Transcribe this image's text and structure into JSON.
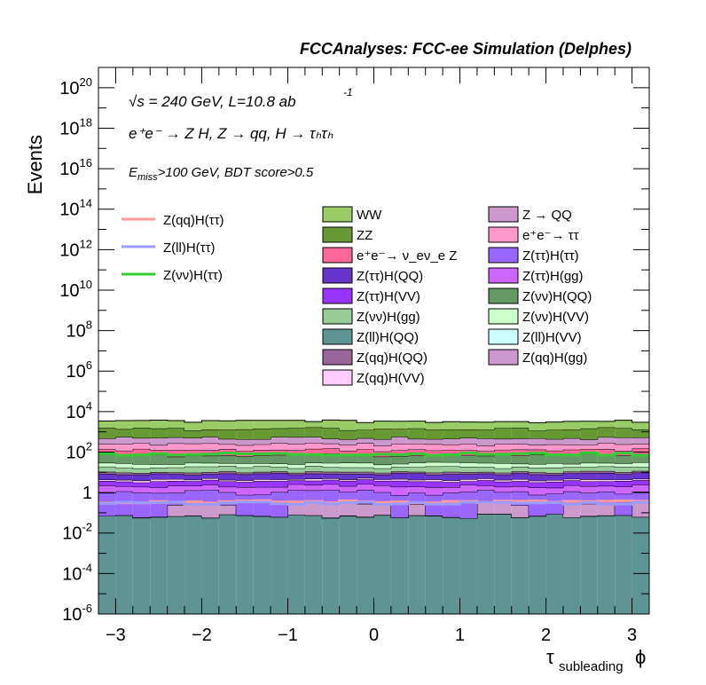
{
  "chart_data": {
    "type": "stacked-histogram",
    "header": "FCCAnalyses: FCC-ee Simulation (Delphes)",
    "annotations": {
      "energy": "√s = 240 GeV, L=10.8 ab",
      "energy_exp": "-1",
      "process": "e⁺e⁻ → Z H, Z → qq, H → τₕτₕ",
      "selection_sym": "E",
      "selection_sub": "miss",
      "selection_rest": ">100 GeV, BDT score>0.5"
    },
    "ylabel": "Events",
    "xlabel_main": "τ",
    "xlabel_sub": "subleading",
    "xlabel_suffix": "ϕ",
    "x_range": [
      -3.2,
      3.2
    ],
    "y_range": [
      1e-06,
      1e+21
    ],
    "y_scale": "log",
    "n_bins": 32,
    "x_ticks": [
      {
        "v": -3,
        "label": "−3"
      },
      {
        "v": -2,
        "label": "−2"
      },
      {
        "v": -1,
        "label": "−1"
      },
      {
        "v": 0,
        "label": "0"
      },
      {
        "v": 1,
        "label": "1"
      },
      {
        "v": 2,
        "label": "2"
      },
      {
        "v": 3,
        "label": "3"
      }
    ],
    "y_ticks": [
      {
        "e": -6,
        "base": "10",
        "exp": "-6"
      },
      {
        "e": -4,
        "base": "10",
        "exp": "-4"
      },
      {
        "e": -2,
        "base": "10",
        "exp": "-2"
      },
      {
        "e": 0,
        "base": "1",
        "exp": ""
      },
      {
        "e": 2,
        "base": "10",
        "exp": "2"
      },
      {
        "e": 4,
        "base": "10",
        "exp": "4"
      },
      {
        "e": 6,
        "base": "10",
        "exp": "6"
      },
      {
        "e": 8,
        "base": "10",
        "exp": "8"
      },
      {
        "e": 10,
        "base": "10",
        "exp": "10"
      },
      {
        "e": 12,
        "base": "10",
        "exp": "12"
      },
      {
        "e": 14,
        "base": "10",
        "exp": "14"
      },
      {
        "e": 16,
        "base": "10",
        "exp": "16"
      },
      {
        "e": 18,
        "base": "10",
        "exp": "18"
      },
      {
        "e": 20,
        "base": "10",
        "exp": "20"
      }
    ],
    "signals": [
      {
        "name": "Z(qq)H(ττ)",
        "color": "#ff9a9a",
        "level": 0.35
      },
      {
        "name": "Z(ll)H(ττ)",
        "color": "#9a9aff",
        "level": 0.3
      },
      {
        "name": "Z(νν)H(ττ)",
        "color": "#33cc33",
        "level": 80
      }
    ],
    "stack": [
      {
        "name": "Z(ll)H(QQ)",
        "color": "#5f9494",
        "mode": "flat",
        "level": 0.07
      },
      {
        "name": "Z(ll)H(VV)",
        "color": "#ccffff",
        "mode": "tall",
        "level": 0.003
      },
      {
        "name": "Z(qq)H(gg)",
        "color": "#cc99cc",
        "mode": "tall",
        "level": 0.2
      },
      {
        "name": "Z(ττ)H(ττ)",
        "color": "#9966ff",
        "mode": "flat",
        "level": 0.9
      },
      {
        "name": "Z(ττ)H(gg)",
        "color": "#cc66ff",
        "mode": "flat",
        "level": 1.1
      },
      {
        "name": "Z(ττ)H(VV)",
        "color": "#9933ff",
        "mode": "flat",
        "level": 1.5
      },
      {
        "name": "Z(qq)H(VV)",
        "color": "#ffccff",
        "mode": "flat",
        "level": 0.8
      },
      {
        "name": "Z(ττ)H(QQ)",
        "color": "#6633cc",
        "mode": "flat",
        "level": 4
      },
      {
        "name": "Z(qq)H(QQ)",
        "color": "#996699",
        "mode": "flat",
        "level": 2
      },
      {
        "name": "Z(νν)H(gg)",
        "color": "#99cc99",
        "mode": "flat",
        "level": 8
      },
      {
        "name": "Z(νν)H(VV)",
        "color": "#ccffcc",
        "mode": "flat",
        "level": 10
      },
      {
        "name": "Z(νν)H(QQ)",
        "color": "#669966",
        "mode": "flat",
        "level": 45
      },
      {
        "name": "e⁺e⁻→ ν_eν_e Z",
        "color": "#ff6699",
        "mode": "flat",
        "level": 60
      },
      {
        "name": "e⁺e⁻→ ττ",
        "color": "#ff99cc",
        "mode": "flat",
        "level": 120
      },
      {
        "name": "Z → QQ",
        "color": "#cc99cc",
        "mode": "flat",
        "level": 250
      },
      {
        "name": "ZZ",
        "color": "#669933",
        "mode": "flat",
        "level": 900
      },
      {
        "name": "WW",
        "color": "#99cc66",
        "mode": "flat",
        "level": 2000
      }
    ],
    "legend_left": [
      "Z(qq)H(ττ)",
      "Z(ll)H(ττ)",
      "Z(νν)H(ττ)"
    ],
    "legend_col1": [
      {
        "label": "WW",
        "color": "#99cc66"
      },
      {
        "label": "ZZ",
        "color": "#669933"
      },
      {
        "label": "e⁺e⁻→ ν_eν_e Z",
        "color": "#ff6699"
      },
      {
        "label": "Z(ττ)H(QQ)",
        "color": "#6633cc"
      },
      {
        "label": "Z(ττ)H(VV)",
        "color": "#9933ff"
      },
      {
        "label": "Z(νν)H(gg)",
        "color": "#99cc99"
      },
      {
        "label": "Z(ll)H(QQ)",
        "color": "#5f9494"
      },
      {
        "label": "Z(qq)H(QQ)",
        "color": "#996699"
      },
      {
        "label": "Z(qq)H(VV)",
        "color": "#ffccff"
      }
    ],
    "legend_col2": [
      {
        "label": "Z → QQ",
        "color": "#cc99cc"
      },
      {
        "label": "e⁺e⁻→ ττ",
        "color": "#ff99cc"
      },
      {
        "label": "Z(ττ)H(ττ)",
        "color": "#9966ff"
      },
      {
        "label": "Z(ττ)H(gg)",
        "color": "#cc66ff"
      },
      {
        "label": "Z(νν)H(QQ)",
        "color": "#669966"
      },
      {
        "label": "Z(νν)H(VV)",
        "color": "#ccffcc"
      },
      {
        "label": "Z(ll)H(VV)",
        "color": "#ccffff"
      },
      {
        "label": "Z(qq)H(gg)",
        "color": "#cc99cc"
      }
    ]
  }
}
